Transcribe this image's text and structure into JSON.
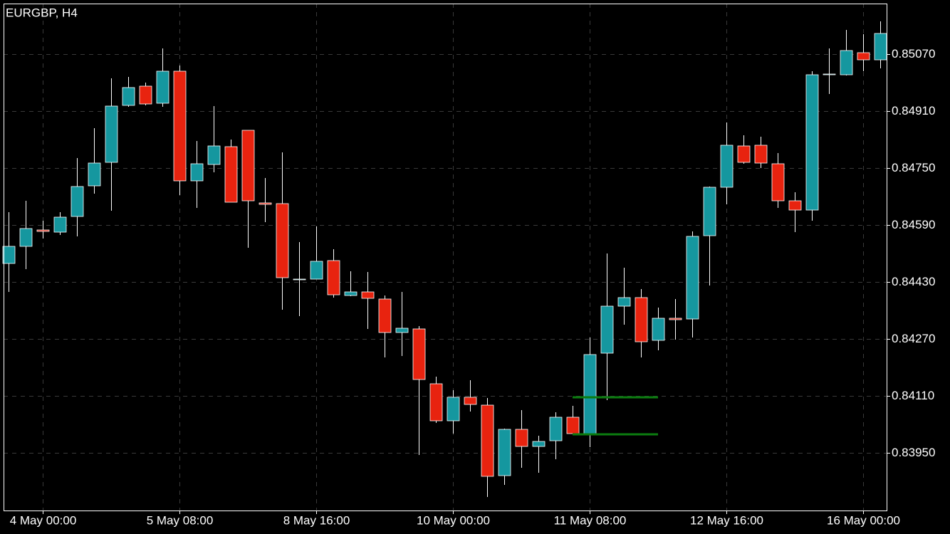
{
  "chart_data": {
    "type": "candlestick",
    "title": "EURGBP, H4",
    "categories": [
      null,
      null,
      "4 May 00:00",
      null,
      null,
      null,
      null,
      null,
      null,
      null,
      "5 May 08:00",
      null,
      null,
      null,
      null,
      null,
      null,
      null,
      "8 May 16:00",
      null,
      null,
      null,
      null,
      null,
      null,
      null,
      "10 May 00:00",
      null,
      null,
      null,
      null,
      null,
      null,
      null,
      "11 May 08:00",
      null,
      null,
      null,
      null,
      null,
      null,
      null,
      "12 May 16:00",
      null,
      null,
      null,
      null,
      null,
      null,
      null,
      "16 May 00:00",
      null
    ],
    "open": [
      0.84482,
      0.8453,
      0.84576,
      0.8457,
      0.84614,
      0.847,
      0.84766,
      0.84926,
      0.8498,
      0.84932,
      0.85022,
      0.84714,
      0.8476,
      0.8481,
      0.84856,
      0.84652,
      0.8465,
      0.84438,
      0.84438,
      0.8449,
      0.84392,
      0.84402,
      0.84382,
      0.84288,
      0.84298,
      0.84144,
      0.8404,
      0.84106,
      0.84084,
      0.83886,
      0.84016,
      0.83968,
      0.83984,
      0.8405,
      0.84002,
      0.8423,
      0.84362,
      0.84386,
      0.84266,
      0.84328,
      0.84326,
      0.8456,
      0.84696,
      0.84812,
      0.84814,
      0.84762,
      0.84658,
      0.84632,
      0.85014,
      0.85012,
      0.85074,
      0.85054
    ],
    "high": [
      0.84626,
      0.84658,
      0.84602,
      0.84626,
      0.84778,
      0.84862,
      0.85002,
      0.85006,
      0.8499,
      0.85086,
      0.85038,
      0.84826,
      0.84924,
      0.8483,
      0.84856,
      0.84722,
      0.84794,
      0.84542,
      0.84586,
      0.84522,
      0.8446,
      0.84458,
      0.84392,
      0.84402,
      0.84306,
      0.84164,
      0.84126,
      0.84154,
      0.84104,
      0.84018,
      0.8407,
      0.83998,
      0.84064,
      0.84082,
      0.84274,
      0.8451,
      0.8447,
      0.8441,
      0.84358,
      0.84382,
      0.84572,
      0.84698,
      0.84878,
      0.84842,
      0.84838,
      0.84792,
      0.84682,
      0.85022,
      0.85086,
      0.85138,
      0.85126,
      0.85162
    ],
    "low": [
      0.84402,
      0.84466,
      0.84552,
      0.84562,
      0.84558,
      0.84678,
      0.8463,
      0.84922,
      0.84926,
      0.84922,
      0.84674,
      0.84638,
      0.84738,
      0.84654,
      0.84526,
      0.84598,
      0.84352,
      0.84334,
      0.84438,
      0.84386,
      0.8439,
      0.84298,
      0.84218,
      0.84222,
      0.83944,
      0.84034,
      0.84004,
      0.84066,
      0.83826,
      0.8386,
      0.83908,
      0.83894,
      0.83932,
      0.84002,
      0.83966,
      0.84098,
      0.8431,
      0.84218,
      0.84238,
      0.84268,
      0.84274,
      0.8442,
      0.84648,
      0.84762,
      0.8475,
      0.84638,
      0.8457,
      0.84602,
      0.84958,
      0.8501,
      0.85022,
      0.8503
    ],
    "close": [
      0.8453,
      0.8458,
      0.84572,
      0.84612,
      0.84698,
      0.84764,
      0.84924,
      0.84976,
      0.8493,
      0.85022,
      0.84714,
      0.84762,
      0.84812,
      0.84654,
      0.84658,
      0.84648,
      0.84442,
      0.84438,
      0.84488,
      0.84394,
      0.84402,
      0.84384,
      0.84288,
      0.843,
      0.84156,
      0.8404,
      0.84106,
      0.84086,
      0.83884,
      0.84016,
      0.83968,
      0.83982,
      0.8405,
      0.84004,
      0.84226,
      0.84362,
      0.84386,
      0.84262,
      0.84328,
      0.84324,
      0.84558,
      0.84696,
      0.84814,
      0.84766,
      0.84764,
      0.84658,
      0.84632,
      0.85012,
      0.85014,
      0.8508,
      0.85054,
      0.85128
    ],
    "up_color": "#15979f",
    "down_color": "#e8230f",
    "wick_color": "#ffffff",
    "levels": [
      {
        "value": 0.84106,
        "from": 33,
        "to": 38
      },
      {
        "value": 0.84002,
        "from": 33,
        "to": 38
      }
    ],
    "level_color": "#0b7d10",
    "ylim": [
      0.83788,
      0.85212
    ],
    "yticks": [
      {
        "value": 0.8395,
        "label": "0.83950"
      },
      {
        "value": 0.8411,
        "label": "0.84110"
      },
      {
        "value": 0.8427,
        "label": "0.84270"
      },
      {
        "value": 0.8443,
        "label": "0.84430"
      },
      {
        "value": 0.8459,
        "label": "0.84590"
      },
      {
        "value": 0.8475,
        "label": "0.84750"
      },
      {
        "value": 0.8491,
        "label": "0.84910"
      },
      {
        "value": 0.8507,
        "label": "0.85070"
      }
    ],
    "grid": true
  }
}
